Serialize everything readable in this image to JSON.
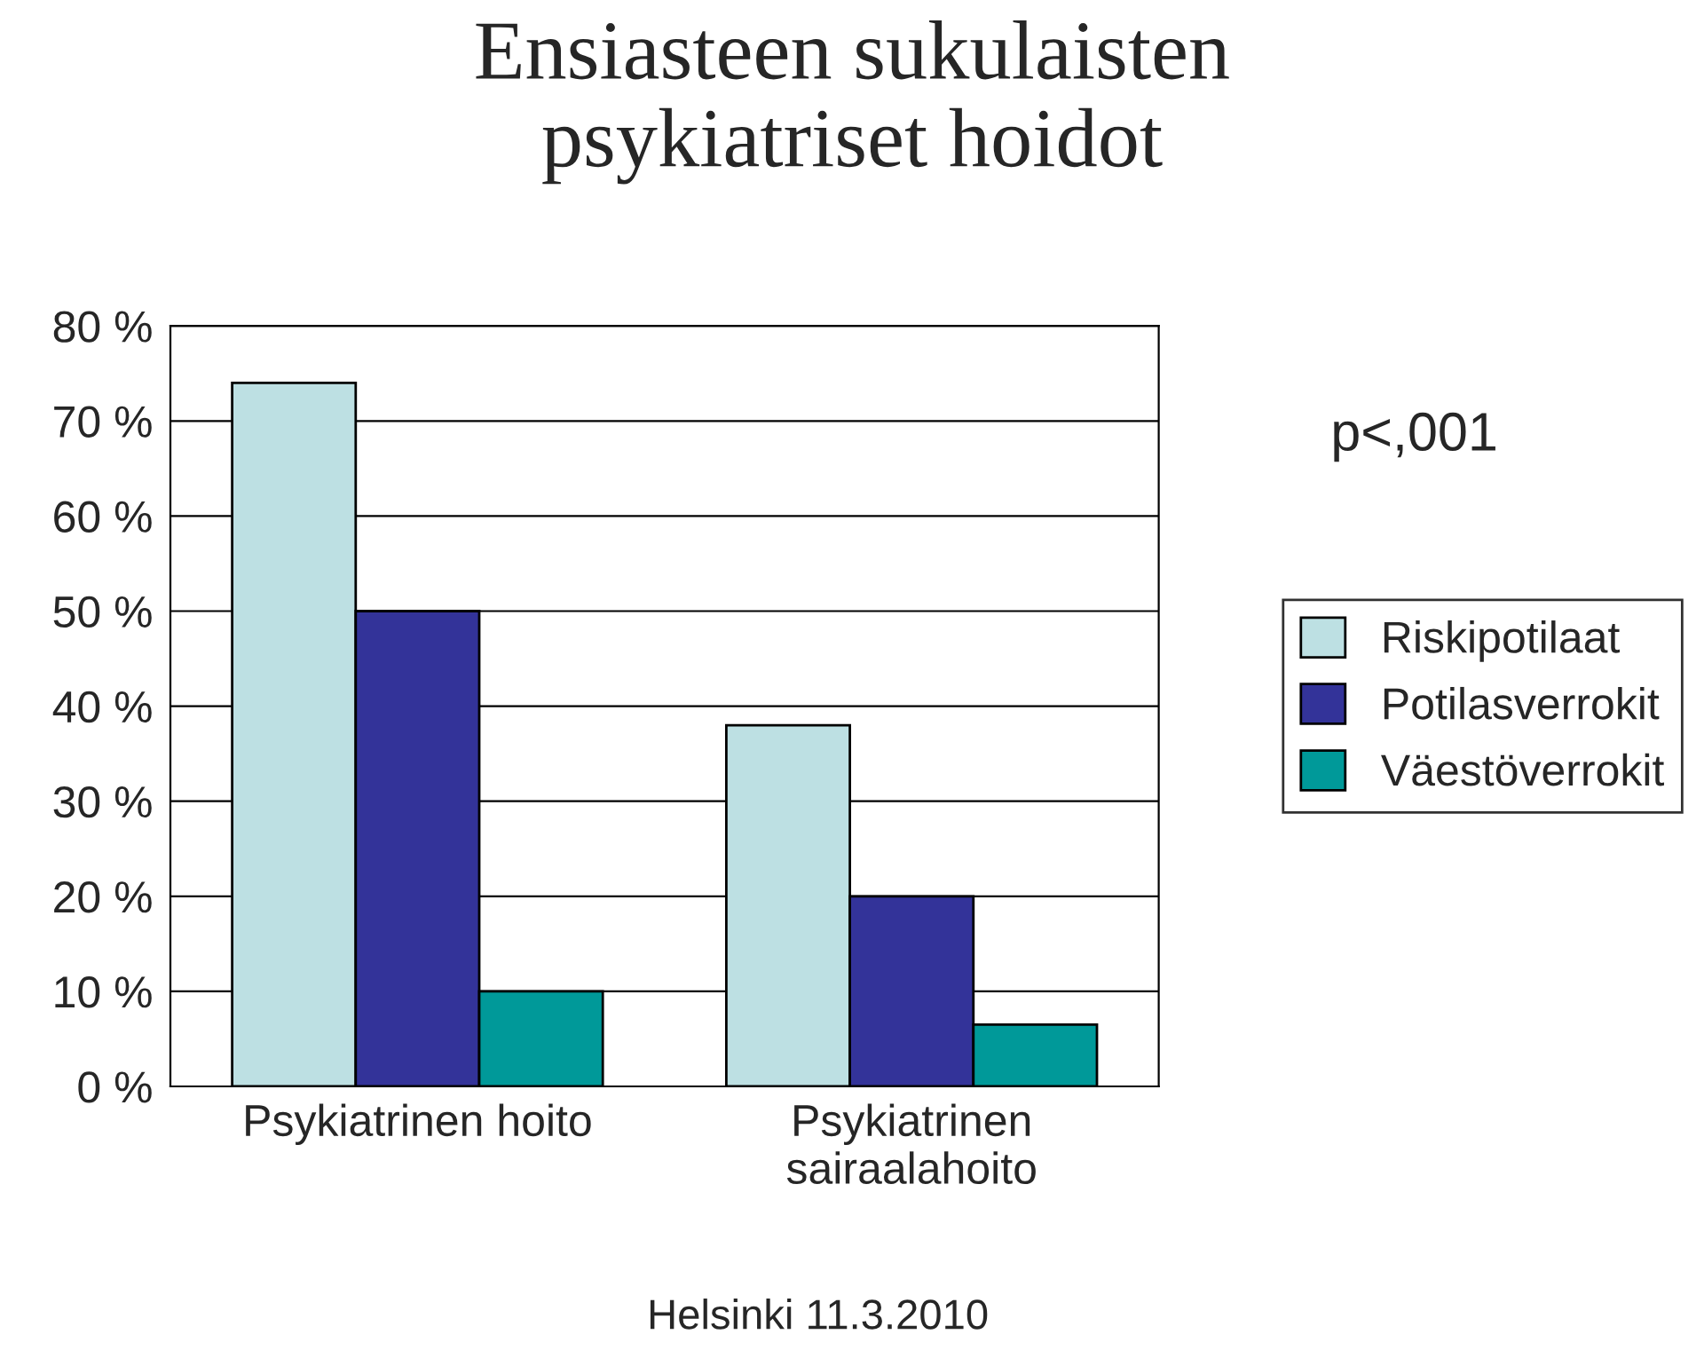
{
  "chart_data": {
    "type": "bar",
    "title": "Ensiasteen sukulaisten\npsykiatriset hoidot",
    "categories": [
      "Psykiatrinen hoito",
      "Psykiatrinen\nsairaalahoito"
    ],
    "series": [
      {
        "name": "Riskipotilaat",
        "color": "#bde0e3",
        "values": [
          74,
          38
        ]
      },
      {
        "name": "Potilasverrokit",
        "color": "#333399",
        "values": [
          50,
          20
        ]
      },
      {
        "name": "Väestöverrokit",
        "color": "#009999",
        "values": [
          10,
          6.5
        ]
      }
    ],
    "ylim": [
      0,
      80
    ],
    "yticks": [
      {
        "value": 0,
        "label": "0 %"
      },
      {
        "value": 10,
        "label": "10 %"
      },
      {
        "value": 20,
        "label": "20 %"
      },
      {
        "value": 30,
        "label": "30 %"
      },
      {
        "value": 40,
        "label": "40 %"
      },
      {
        "value": 50,
        "label": "50 %"
      },
      {
        "value": 60,
        "label": "60 %"
      },
      {
        "value": 70,
        "label": "70 %"
      },
      {
        "value": 80,
        "label": "80 %"
      }
    ],
    "grid": "y",
    "legend": "right",
    "annotations": [
      "p<,001",
      "Helsinki 11.3.2010"
    ]
  }
}
